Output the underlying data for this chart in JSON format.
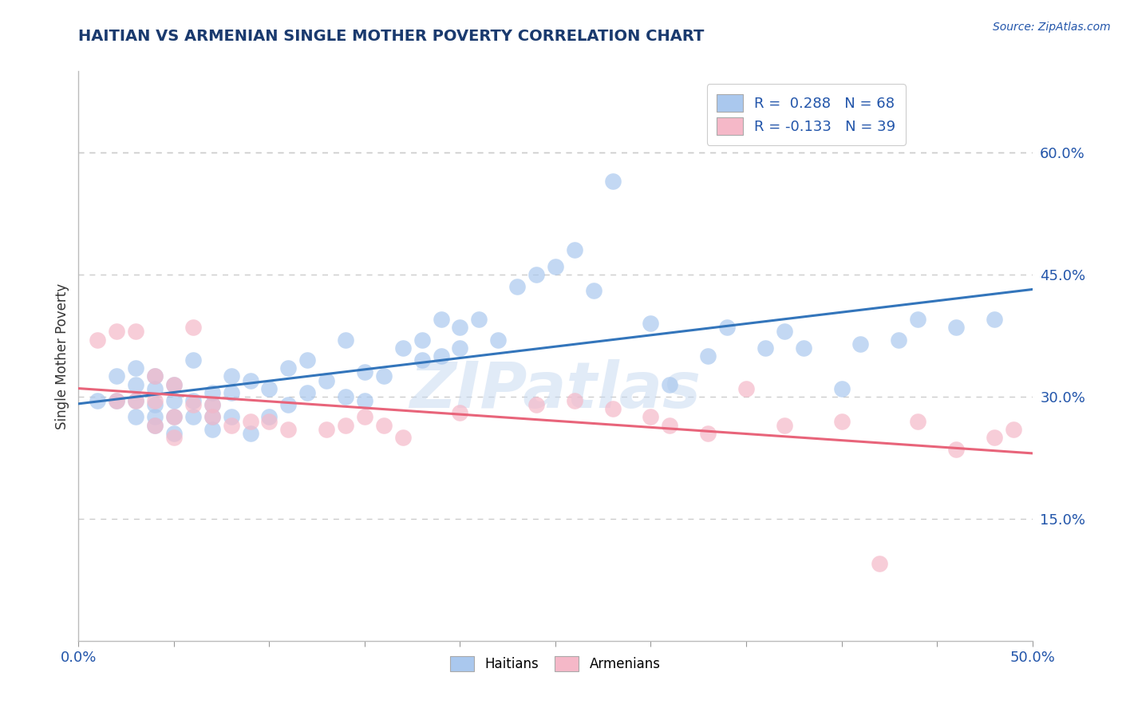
{
  "title": "HAITIAN VS ARMENIAN SINGLE MOTHER POVERTY CORRELATION CHART",
  "source": "Source: ZipAtlas.com",
  "ylabel": "Single Mother Poverty",
  "xlim": [
    0.0,
    0.5
  ],
  "ylim": [
    0.0,
    0.7
  ],
  "xtick_positions": [
    0.0,
    0.05,
    0.1,
    0.15,
    0.2,
    0.25,
    0.3,
    0.35,
    0.4,
    0.45,
    0.5
  ],
  "xticklabels": [
    "0.0%",
    "",
    "",
    "",
    "",
    "",
    "",
    "",
    "",
    "",
    "50.0%"
  ],
  "yticks_right": [
    0.15,
    0.3,
    0.45,
    0.6
  ],
  "ytick_right_labels": [
    "15.0%",
    "30.0%",
    "45.0%",
    "60.0%"
  ],
  "haitian_fill_color": "#aac8ee",
  "armenian_fill_color": "#f5b8c8",
  "haitian_line_color": "#3375bb",
  "armenian_line_color": "#e8647a",
  "legend_R_haitian": "0.288",
  "legend_N_haitian": "68",
  "legend_R_armenian": "-0.133",
  "legend_N_armenian": "39",
  "title_color": "#1a3a6e",
  "axis_label_color": "#2255aa",
  "haitian_x": [
    0.01,
    0.02,
    0.02,
    0.03,
    0.03,
    0.03,
    0.03,
    0.04,
    0.04,
    0.04,
    0.04,
    0.04,
    0.05,
    0.05,
    0.05,
    0.05,
    0.06,
    0.06,
    0.06,
    0.07,
    0.07,
    0.07,
    0.07,
    0.08,
    0.08,
    0.08,
    0.09,
    0.09,
    0.1,
    0.1,
    0.11,
    0.11,
    0.12,
    0.12,
    0.13,
    0.14,
    0.14,
    0.15,
    0.15,
    0.16,
    0.17,
    0.18,
    0.18,
    0.19,
    0.19,
    0.2,
    0.2,
    0.21,
    0.22,
    0.23,
    0.24,
    0.25,
    0.26,
    0.27,
    0.28,
    0.3,
    0.31,
    0.33,
    0.34,
    0.36,
    0.37,
    0.38,
    0.4,
    0.41,
    0.43,
    0.44,
    0.46,
    0.48
  ],
  "haitian_y": [
    0.295,
    0.325,
    0.295,
    0.315,
    0.335,
    0.295,
    0.275,
    0.31,
    0.325,
    0.29,
    0.275,
    0.265,
    0.315,
    0.295,
    0.275,
    0.255,
    0.345,
    0.295,
    0.275,
    0.305,
    0.29,
    0.275,
    0.26,
    0.325,
    0.305,
    0.275,
    0.32,
    0.255,
    0.31,
    0.275,
    0.335,
    0.29,
    0.345,
    0.305,
    0.32,
    0.3,
    0.37,
    0.33,
    0.295,
    0.325,
    0.36,
    0.37,
    0.345,
    0.395,
    0.35,
    0.385,
    0.36,
    0.395,
    0.37,
    0.435,
    0.45,
    0.46,
    0.48,
    0.43,
    0.565,
    0.39,
    0.315,
    0.35,
    0.385,
    0.36,
    0.38,
    0.36,
    0.31,
    0.365,
    0.37,
    0.395,
    0.385,
    0.395
  ],
  "armenian_x": [
    0.01,
    0.02,
    0.02,
    0.03,
    0.03,
    0.04,
    0.04,
    0.04,
    0.05,
    0.05,
    0.05,
    0.06,
    0.06,
    0.07,
    0.07,
    0.08,
    0.09,
    0.1,
    0.11,
    0.13,
    0.14,
    0.15,
    0.16,
    0.17,
    0.2,
    0.24,
    0.26,
    0.28,
    0.3,
    0.31,
    0.33,
    0.35,
    0.37,
    0.4,
    0.42,
    0.44,
    0.46,
    0.48,
    0.49
  ],
  "armenian_y": [
    0.37,
    0.38,
    0.295,
    0.38,
    0.295,
    0.325,
    0.295,
    0.265,
    0.315,
    0.275,
    0.25,
    0.385,
    0.29,
    0.29,
    0.275,
    0.265,
    0.27,
    0.27,
    0.26,
    0.26,
    0.265,
    0.275,
    0.265,
    0.25,
    0.28,
    0.29,
    0.295,
    0.285,
    0.275,
    0.265,
    0.255,
    0.31,
    0.265,
    0.27,
    0.095,
    0.27,
    0.235,
    0.25,
    0.26
  ],
  "grid_color": "#cccccc",
  "background_color": "#ffffff"
}
